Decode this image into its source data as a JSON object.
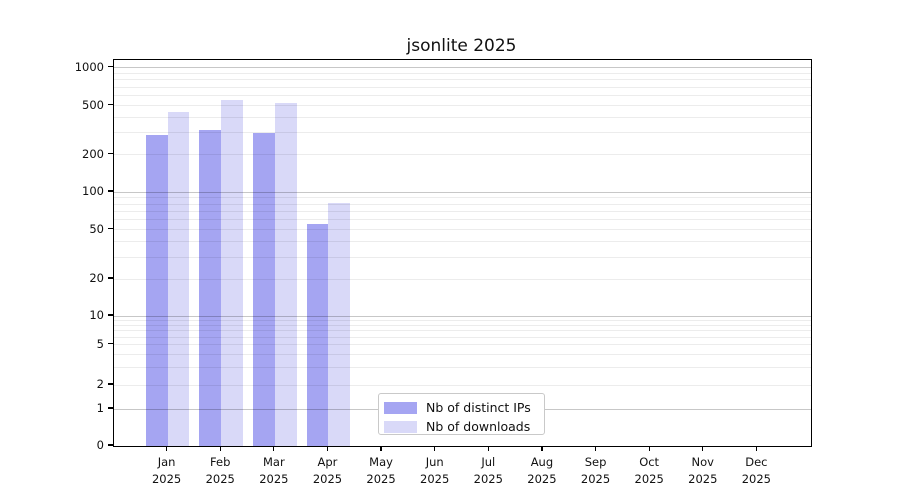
{
  "title": "jsonlite 2025",
  "legend": {
    "items": [
      {
        "label": "Nb of distinct IPs",
        "color": "#a5a5f2"
      },
      {
        "label": "Nb of downloads",
        "color": "#d9d9f8"
      }
    ]
  },
  "chart_data": {
    "type": "bar",
    "title": "jsonlite 2025",
    "categories": [
      "Jan 2025",
      "Feb 2025",
      "Mar 2025",
      "Apr 2025",
      "May 2025",
      "Jun 2025",
      "Jul 2025",
      "Aug 2025",
      "Sep 2025",
      "Oct 2025",
      "Nov 2025",
      "Dec 2025"
    ],
    "months": [
      "Jan",
      "Feb",
      "Mar",
      "Apr",
      "May",
      "Jun",
      "Jul",
      "Aug",
      "Sep",
      "Oct",
      "Nov",
      "Dec"
    ],
    "year": "2025",
    "series": [
      {
        "name": "Nb of distinct IPs",
        "color": "#a5a5f2",
        "values": [
          290,
          315,
          300,
          55,
          0,
          0,
          0,
          0,
          0,
          0,
          0,
          0
        ]
      },
      {
        "name": "Nb of downloads",
        "color": "#d9d9f8",
        "values": [
          440,
          550,
          520,
          81,
          0,
          0,
          0,
          0,
          0,
          0,
          0,
          0
        ]
      }
    ],
    "yscale": "symlog",
    "yticks": [
      0,
      1,
      2,
      5,
      10,
      20,
      50,
      100,
      200,
      500,
      1000
    ],
    "ylim": [
      0,
      1000
    ],
    "xlabel": "",
    "ylabel": "",
    "grid": "horizontal",
    "legend_position": "lower-center-left"
  }
}
